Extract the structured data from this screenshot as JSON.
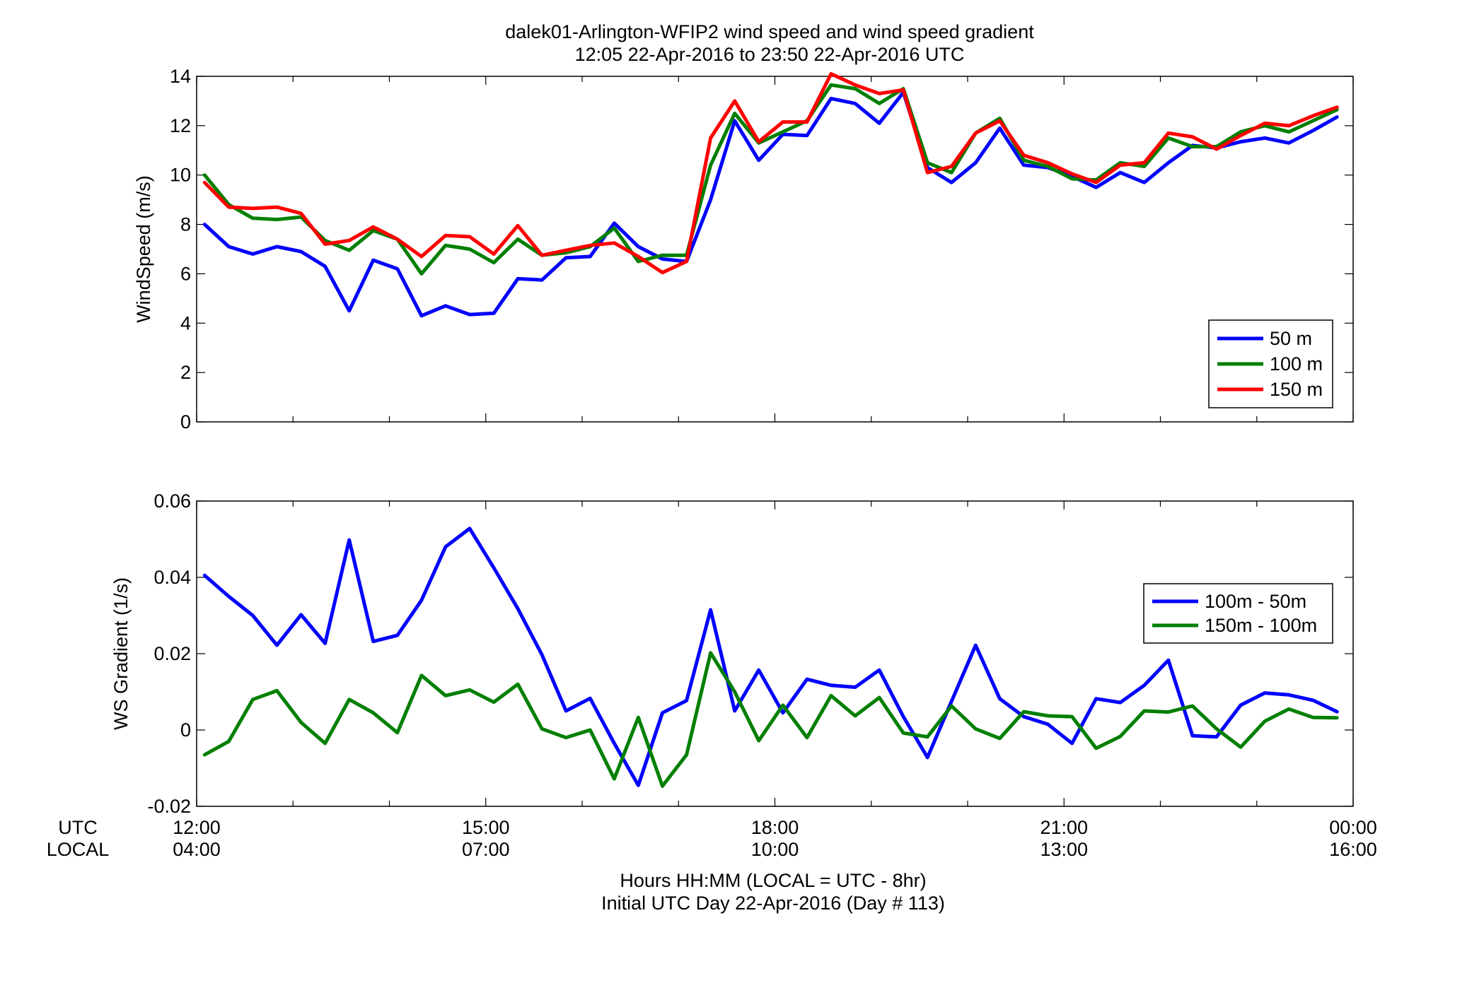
{
  "title_line1": "dalek01-Arlington-WFIP2  wind speed and wind speed gradient",
  "title_line2": "12:05 22-Apr-2016 to 23:50 22-Apr-2016  UTC",
  "xaxis": {
    "utc_label": "UTC",
    "local_label": "LOCAL",
    "caption_line1": "Hours HH:MM  (LOCAL = UTC - 8hr)",
    "caption_line2": "Initial UTC Day 22-Apr-2016 (Day # 113)",
    "utc_ticks": [
      "12:00",
      "15:00",
      "18:00",
      "21:00",
      "00:00"
    ],
    "local_ticks": [
      "04:00",
      "07:00",
      "10:00",
      "13:00",
      "16:00"
    ]
  },
  "colors": {
    "s50": "#0000ff",
    "s100": "#007f00",
    "s150": "#ff0000",
    "g1": "#0000ff",
    "g2": "#007f00"
  },
  "chart_data": [
    {
      "type": "line",
      "ylabel": "WindSpeed (m/s)",
      "xlim": [
        12.0,
        24.0
      ],
      "ylim": [
        0,
        14
      ],
      "yticks": [
        0,
        2,
        4,
        6,
        8,
        10,
        12,
        14
      ],
      "grid": false,
      "legend_position": "bottom-right",
      "x_hours_utc": [
        12.083,
        12.333,
        12.583,
        12.833,
        13.083,
        13.333,
        13.583,
        13.833,
        14.083,
        14.333,
        14.583,
        14.833,
        15.083,
        15.333,
        15.583,
        15.833,
        16.083,
        16.333,
        16.583,
        16.833,
        17.083,
        17.333,
        17.583,
        17.833,
        18.083,
        18.333,
        18.583,
        18.833,
        19.083,
        19.333,
        19.583,
        19.833,
        20.083,
        20.333,
        20.583,
        20.833,
        21.083,
        21.333,
        21.583,
        21.833,
        22.083,
        22.333,
        22.583,
        22.833,
        23.083,
        23.333,
        23.583,
        23.833
      ],
      "series": [
        {
          "name": "50 m",
          "color_key": "s50",
          "values": [
            8.0,
            7.1,
            6.8,
            7.1,
            6.9,
            6.3,
            4.5,
            6.55,
            6.2,
            4.3,
            4.7,
            4.35,
            4.4,
            5.8,
            5.75,
            6.65,
            6.7,
            8.05,
            7.1,
            6.6,
            6.5,
            9.0,
            12.2,
            10.6,
            11.65,
            11.6,
            13.1,
            12.9,
            12.1,
            13.35,
            10.3,
            9.7,
            10.5,
            11.9,
            10.4,
            10.3,
            9.95,
            9.5,
            10.1,
            9.7,
            10.5,
            11.2,
            11.1,
            11.35,
            11.5,
            11.3,
            11.8,
            12.35
          ]
        },
        {
          "name": "100 m",
          "color_key": "s100",
          "values": [
            10.0,
            8.8,
            8.25,
            8.2,
            8.3,
            7.35,
            6.95,
            7.75,
            7.4,
            6.0,
            7.15,
            7.0,
            6.45,
            7.4,
            6.75,
            6.85,
            7.1,
            7.85,
            6.5,
            6.75,
            6.75,
            10.4,
            12.5,
            11.3,
            11.75,
            12.2,
            13.65,
            13.5,
            12.9,
            13.5,
            10.5,
            10.1,
            11.7,
            12.3,
            10.6,
            10.35,
            9.85,
            9.8,
            10.5,
            10.35,
            11.5,
            11.15,
            11.15,
            11.75,
            12.0,
            11.75,
            12.2,
            12.65
          ]
        },
        {
          "name": "150 m",
          "color_key": "s150",
          "values": [
            9.7,
            8.7,
            8.65,
            8.7,
            8.45,
            7.2,
            7.35,
            7.9,
            7.4,
            6.7,
            7.55,
            7.5,
            6.8,
            7.95,
            6.75,
            6.95,
            7.15,
            7.25,
            6.7,
            6.05,
            6.5,
            11.5,
            13.0,
            11.35,
            12.15,
            12.15,
            14.1,
            13.65,
            13.3,
            13.45,
            10.1,
            10.35,
            11.7,
            12.2,
            10.8,
            10.5,
            10.05,
            9.7,
            10.4,
            10.5,
            11.7,
            11.55,
            11.05,
            11.6,
            12.1,
            12.0,
            12.4,
            12.75
          ]
        }
      ]
    },
    {
      "type": "line",
      "ylabel": "WS Gradient (1/s)",
      "xlim": [
        12.0,
        24.0
      ],
      "ylim": [
        -0.02,
        0.06
      ],
      "yticks": [
        -0.02,
        0,
        0.02,
        0.04,
        0.06
      ],
      "ytick_labels": [
        "-0.02",
        "0",
        "0.02",
        "0.04",
        "0.06"
      ],
      "grid": false,
      "legend_position": "top-right",
      "x_hours_utc": [
        12.083,
        12.333,
        12.583,
        12.833,
        13.083,
        13.333,
        13.583,
        13.833,
        14.083,
        14.333,
        14.583,
        14.833,
        15.083,
        15.333,
        15.583,
        15.833,
        16.083,
        16.333,
        16.583,
        16.833,
        17.083,
        17.333,
        17.583,
        17.833,
        18.083,
        18.333,
        18.583,
        18.833,
        19.083,
        19.333,
        19.583,
        19.833,
        20.083,
        20.333,
        20.583,
        20.833,
        21.083,
        21.333,
        21.583,
        21.833,
        22.083,
        22.333,
        22.583,
        22.833,
        23.083,
        23.333,
        23.583,
        23.833
      ],
      "series": [
        {
          "name": "100m - 50m",
          "color_key": "g1",
          "values": [
            0.0405,
            0.035,
            0.03,
            0.0222,
            0.0302,
            0.0227,
            0.0498,
            0.0232,
            0.0248,
            0.034,
            0.048,
            0.0528,
            0.0425,
            0.0318,
            0.0197,
            0.005,
            0.0083,
            -0.0035,
            -0.0145,
            0.0045,
            0.0077,
            0.0315,
            0.005,
            0.0157,
            0.0045,
            0.0133,
            0.0117,
            0.0112,
            0.0157,
            0.0035,
            -0.0072,
            0.0075,
            0.0222,
            0.0082,
            0.0035,
            0.0015,
            -0.0035,
            0.0082,
            0.0072,
            0.0117,
            0.0183,
            -0.0015,
            -0.0018,
            0.0065,
            0.0097,
            0.0092,
            0.0078,
            0.0048
          ]
        },
        {
          "name": "150m - 100m",
          "color_key": "g2",
          "values": [
            -0.0065,
            -0.003,
            0.008,
            0.0103,
            0.002,
            -0.0035,
            0.008,
            0.0045,
            -0.0007,
            0.0143,
            0.009,
            0.0105,
            0.0073,
            0.012,
            0.0003,
            -0.002,
            0.0,
            -0.0128,
            0.0033,
            -0.0147,
            -0.0065,
            0.0202,
            0.01,
            -0.0028,
            0.0065,
            -0.002,
            0.009,
            0.0037,
            0.0085,
            -0.0008,
            -0.0018,
            0.0063,
            0.0003,
            -0.0022,
            0.0048,
            0.0037,
            0.0035,
            -0.0048,
            -0.0017,
            0.005,
            0.0047,
            0.0063,
            0.0003,
            -0.0045,
            0.0023,
            0.0055,
            0.0033,
            0.0032
          ]
        }
      ]
    }
  ]
}
